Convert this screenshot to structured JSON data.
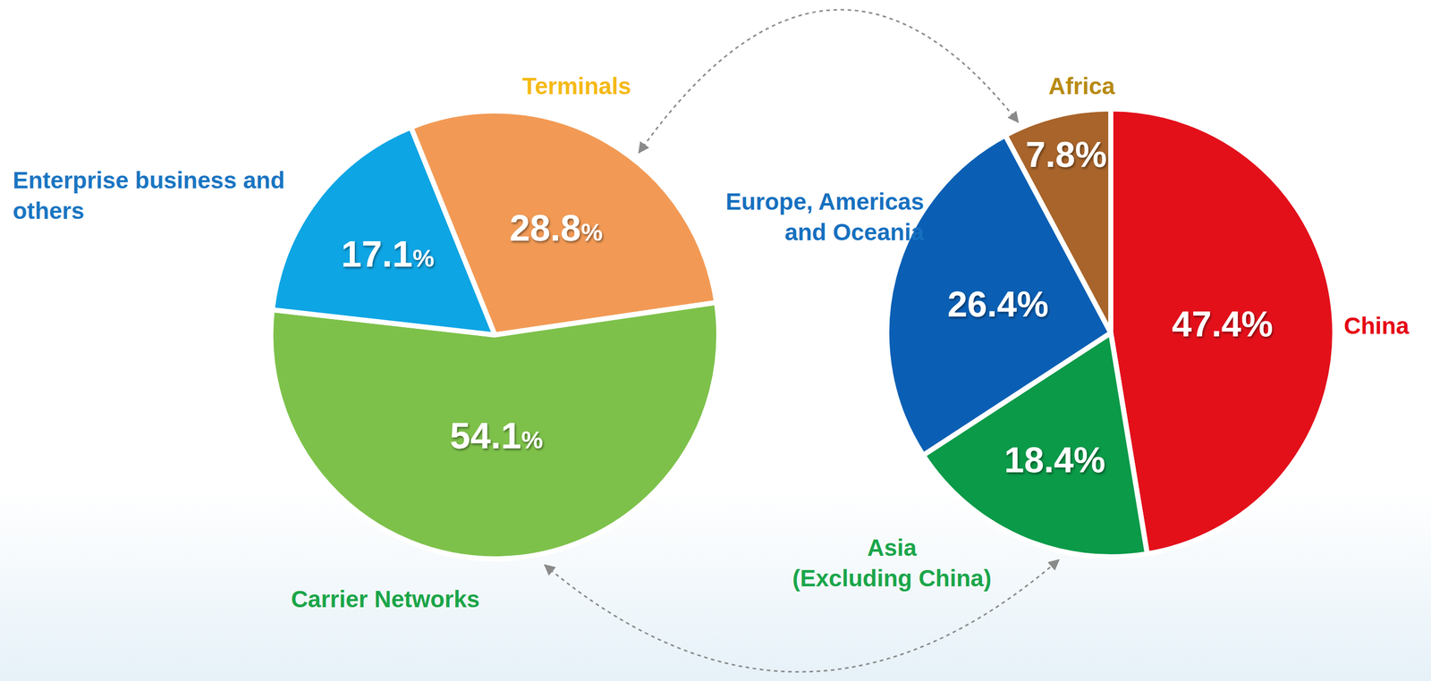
{
  "chart_data": [
    {
      "type": "pie",
      "categories": [
        "Terminals",
        "Carrier Networks",
        "Enterprise business and others"
      ],
      "values": [
        28.8,
        54.1,
        17.1
      ],
      "value_labels": [
        "28.8%",
        "54.1%",
        "17.1%"
      ],
      "colors": [
        "#F29A55",
        "#7DC14A",
        "#0EA5E4"
      ],
      "data_labels": true
    },
    {
      "type": "pie",
      "categories": [
        "China",
        "Asia (Excluding China)",
        "Europe, Americas and Oceania",
        "Africa"
      ],
      "values": [
        47.4,
        18.4,
        26.4,
        7.8
      ],
      "value_labels": [
        "47.4%",
        "18.4%",
        "26.4%",
        "7.8%"
      ],
      "colors": [
        "#E3101A",
        "#0A9A48",
        "#0A5FB4",
        "#A8642A"
      ],
      "data_labels": true
    }
  ]
}
